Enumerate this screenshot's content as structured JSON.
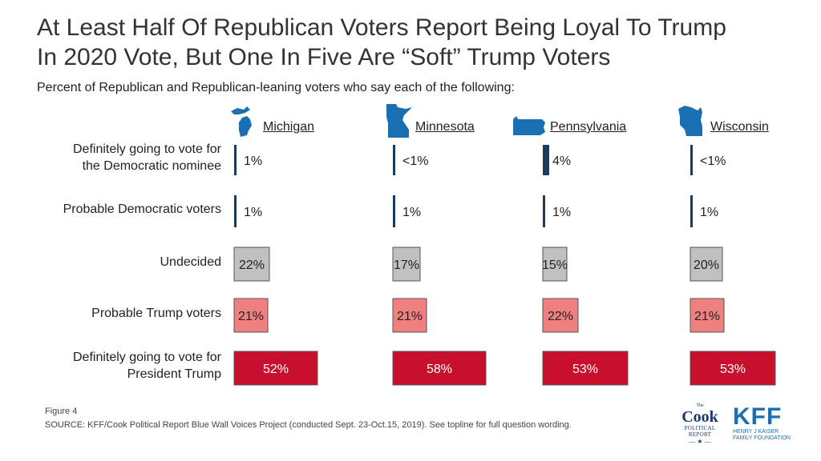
{
  "title_line1": "At Least Half Of Republican Voters Report Being Loyal To Trump",
  "title_line2": "In 2020 Vote, But One In Five Are “Soft” Trump Voters",
  "subtitle": "Percent of Republican and Republican-leaning voters who say each of the following:",
  "footer": {
    "figure": "Figure 4",
    "source": "SOURCE: KFF/Cook Political Report Blue Wall Voices Project (conducted Sept. 23-Oct.15, 2019). See topline for full question wording."
  },
  "logos": {
    "cook_the": "The",
    "cook_main": "Cook",
    "cook_sub1": "POLITICAL",
    "cook_sub2": "REPORT",
    "cook_star": "— ★ —",
    "kff_main": "KFF",
    "kff_sub1": "HENRY J KAISER",
    "kff_sub2": "FAMILY FOUNDATION"
  },
  "chart_data": {
    "type": "bar",
    "categories": [
      "Definitely going to vote for the Democratic nominee",
      "Probable Democratic voters",
      "Undecided",
      "Probable Trump voters",
      "Definitely going to vote for President Trump"
    ],
    "category_lines": [
      [
        "Definitely going to vote for",
        "the Democratic nominee"
      ],
      [
        "Probable Democratic voters"
      ],
      [
        "Undecided"
      ],
      [
        "Probable Trump voters"
      ],
      [
        "Definitely going to vote for",
        "President Trump"
      ]
    ],
    "category_colors": [
      "#1b3a5c",
      "#1b3a5c",
      "#c0c0c0",
      "#f08080",
      "#c8102e"
    ],
    "series": [
      {
        "name": "Michigan",
        "values": [
          1,
          1,
          22,
          21,
          52
        ],
        "labels": [
          "1%",
          "1%",
          "22%",
          "21%",
          "52%"
        ]
      },
      {
        "name": "Minnesota",
        "values": [
          0.4,
          1,
          17,
          21,
          58
        ],
        "labels": [
          "<1%",
          "1%",
          "17%",
          "21%",
          "58%"
        ]
      },
      {
        "name": "Pennsylvania",
        "values": [
          4,
          1,
          15,
          22,
          53
        ],
        "labels": [
          "4%",
          "1%",
          "15%",
          "22%",
          "53%"
        ]
      },
      {
        "name": "Wisconsin",
        "values": [
          0.4,
          1,
          20,
          21,
          53
        ],
        "labels": [
          "<1%",
          "1%",
          "20%",
          "21%",
          "53%"
        ]
      }
    ],
    "xlim": [
      0,
      100
    ],
    "xlabel": "",
    "ylabel": "",
    "grid": false,
    "legend": "none"
  }
}
